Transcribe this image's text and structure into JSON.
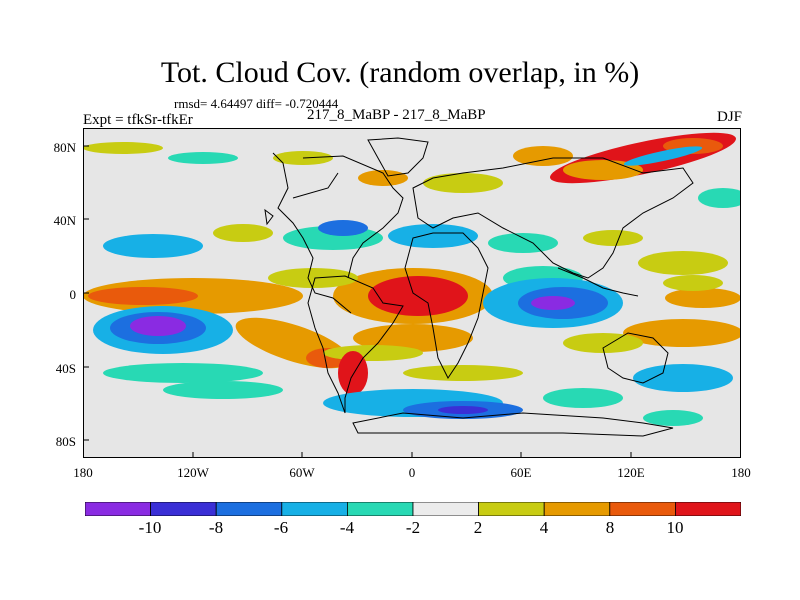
{
  "title": "Tot. Cloud Cov. (random overlap, in %)",
  "stats": "rmsd= 4.64497 diff= -0.720444",
  "expt": "Expt = tfkSr-tfkEr",
  "experiments": "217_8_MaBP - 217_8_MaBP",
  "season": "DJF",
  "lat_ticks": [
    "80N",
    "40N",
    "0",
    "40S",
    "80S"
  ],
  "lon_ticks": [
    "180",
    "120W",
    "60W",
    "0",
    "60E",
    "120E",
    "180"
  ],
  "colorbar": {
    "labels": [
      "-10",
      "-8",
      "-6",
      "-4",
      "-2",
      "2",
      "4",
      "8",
      "10"
    ],
    "colors": [
      "#8a2be2",
      "#3a2fd6",
      "#1c6fe0",
      "#17b0e6",
      "#28d9b4",
      "#ececec",
      "#c8cc12",
      "#e69a00",
      "#e95a0c",
      "#e0141a"
    ]
  }
}
